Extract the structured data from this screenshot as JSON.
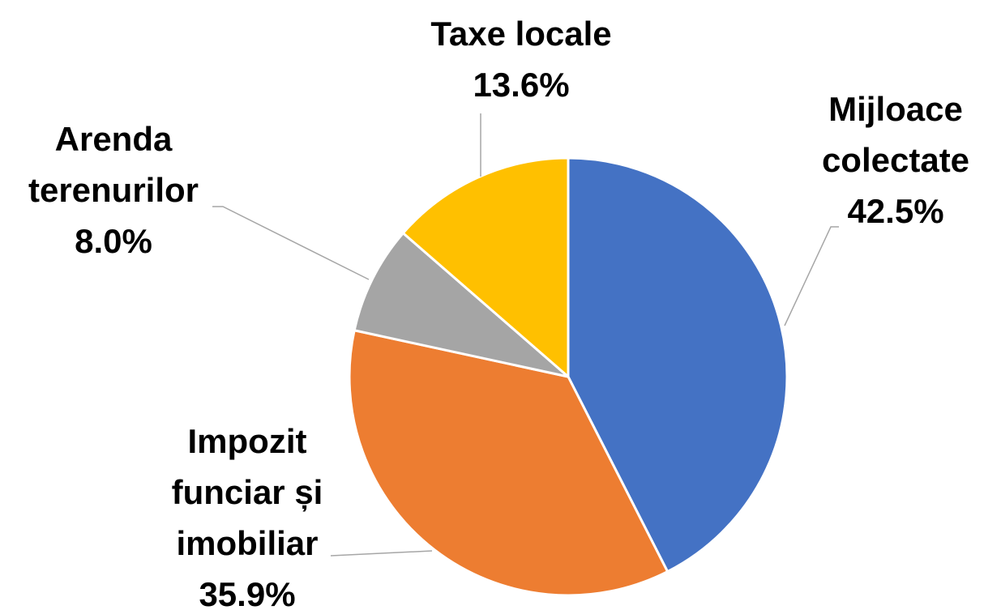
{
  "chart_data": {
    "type": "pie",
    "categories": [
      "Mijloace colectate",
      "Impozit funciar și imobiliar",
      "Arenda terenurilor",
      "Taxe locale"
    ],
    "values": [
      42.5,
      35.9,
      8.0,
      13.6
    ],
    "value_labels": [
      "42.5%",
      "35.9%",
      "8.0%",
      "13.6%"
    ],
    "colors": [
      "#4472C4",
      "#ED7D31",
      "#A5A5A5",
      "#FFC000"
    ]
  }
}
